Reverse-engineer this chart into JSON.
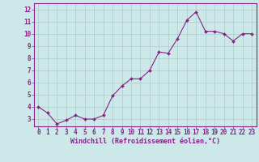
{
  "x": [
    0,
    1,
    2,
    3,
    4,
    5,
    6,
    7,
    8,
    9,
    10,
    11,
    12,
    13,
    14,
    15,
    16,
    17,
    18,
    19,
    20,
    21,
    22,
    23
  ],
  "y": [
    4.0,
    3.5,
    2.6,
    2.9,
    3.3,
    3.0,
    3.0,
    3.3,
    4.9,
    5.7,
    6.3,
    6.3,
    7.0,
    8.5,
    8.4,
    9.6,
    11.1,
    11.8,
    10.2,
    10.2,
    10.0,
    9.4,
    10.0,
    10.0
  ],
  "line_color": "#882288",
  "marker": "D",
  "marker_size": 2.0,
  "linewidth": 0.8,
  "xlabel": "Windchill (Refroidissement éolien,°C)",
  "xlabel_fontsize": 6.0,
  "ylabel_ticks": [
    3,
    4,
    5,
    6,
    7,
    8,
    9,
    10,
    11,
    12
  ],
  "xtick_labels": [
    "0",
    "1",
    "2",
    "3",
    "4",
    "5",
    "6",
    "7",
    "8",
    "9",
    "10",
    "11",
    "12",
    "13",
    "14",
    "15",
    "16",
    "17",
    "18",
    "19",
    "20",
    "21",
    "22",
    "23"
  ],
  "ylim": [
    2.4,
    12.5
  ],
  "xlim": [
    -0.5,
    23.5
  ],
  "bg_color": "#cce8e8",
  "grid_color": "#aacccc",
  "tick_color": "#882288",
  "label_color": "#882288",
  "tick_fontsize": 5.5
}
